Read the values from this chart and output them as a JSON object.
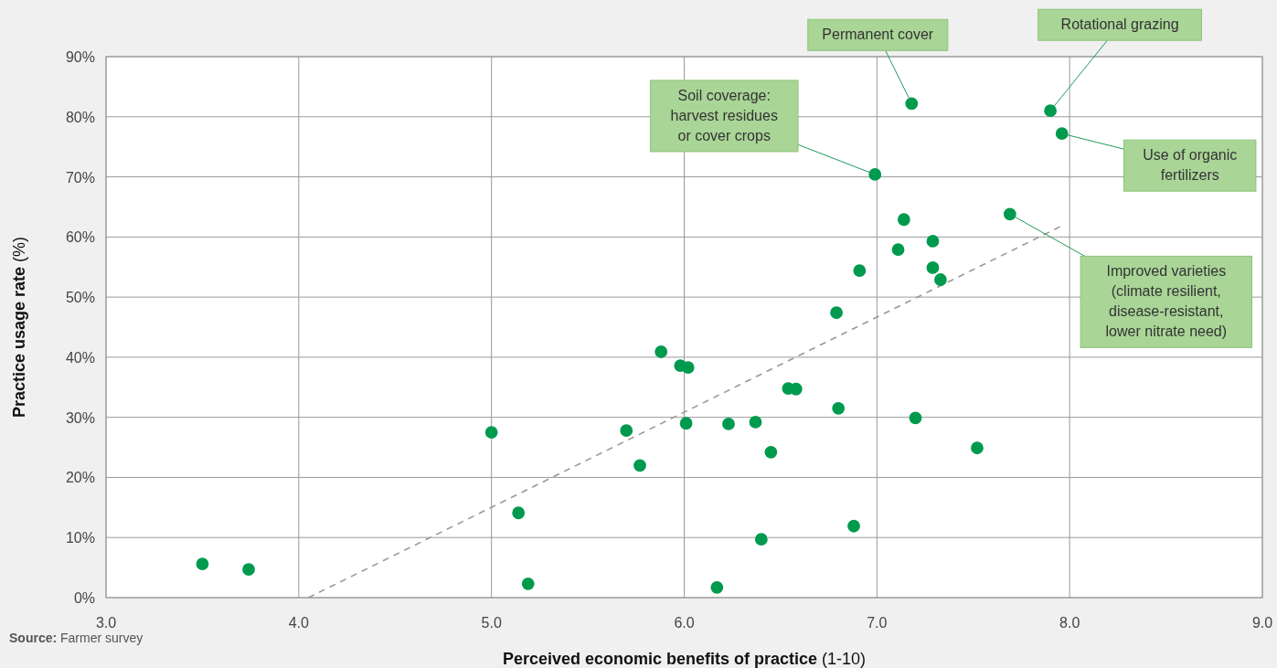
{
  "chart_data": {
    "type": "scatter",
    "xlabel": "Perceived economic benefits of practice (1-10)",
    "ylabel": "Practice usage rate (%)",
    "xlim": [
      3,
      9
    ],
    "xticks": [
      {
        "value": 3,
        "label": "3.0"
      },
      {
        "value": 4,
        "label": "4.0"
      },
      {
        "value": 5,
        "label": "5.0"
      },
      {
        "value": 6,
        "label": "6.0"
      },
      {
        "value": 7,
        "label": "7.0"
      },
      {
        "value": 8,
        "label": "8.0"
      },
      {
        "value": 9,
        "label": "9.0"
      }
    ],
    "ylim": [
      0,
      90
    ],
    "yticks": [
      {
        "value": 0,
        "label": "0%"
      },
      {
        "value": 10,
        "label": "10%"
      },
      {
        "value": 20,
        "label": "20%"
      },
      {
        "value": 30,
        "label": "30%"
      },
      {
        "value": 40,
        "label": "40%"
      },
      {
        "value": 50,
        "label": "50%"
      },
      {
        "value": 60,
        "label": "60%"
      },
      {
        "value": 70,
        "label": "70%"
      },
      {
        "value": 80,
        "label": "80%"
      },
      {
        "value": 90,
        "label": "90%"
      }
    ],
    "grid": true,
    "marker": "circle",
    "series": [
      {
        "color": "#009a4e",
        "x": [
          3.5,
          3.74,
          5.0,
          5.14,
          5.19,
          5.7,
          5.77,
          5.88,
          5.98,
          6.02,
          6.01,
          6.17,
          6.23,
          6.37,
          6.4,
          6.45,
          6.54,
          6.58,
          6.79,
          6.8,
          6.88,
          6.91,
          6.99,
          7.11,
          7.14,
          7.18,
          7.2,
          7.29,
          7.29,
          7.33,
          7.52,
          7.69,
          7.9,
          7.96
        ],
        "values": [
          5.6,
          4.7,
          27.5,
          14.1,
          2.3,
          27.8,
          22.0,
          40.9,
          38.6,
          38.3,
          29.0,
          1.7,
          28.9,
          29.2,
          9.7,
          24.2,
          34.8,
          34.7,
          47.4,
          31.5,
          11.9,
          54.4,
          70.4,
          57.9,
          62.9,
          82.2,
          29.9,
          59.3,
          54.9,
          52.9,
          24.9,
          63.8,
          81.0,
          77.2
        ]
      },
      {
        "type": "line",
        "color": "#999999",
        "line_style": "dashed",
        "marker": "none",
        "x": [
          4.05,
          7.95
        ],
        "values": [
          0,
          61.7
        ]
      }
    ],
    "annotations": [
      {
        "text": "Permanent cover",
        "x": 7.18,
        "y": 82.2
      },
      {
        "text": "Rotational grazing",
        "x": 7.9,
        "y": 81.0
      },
      {
        "text": "Soil coverage:\nharvest residues\nor cover crops",
        "x": 6.99,
        "y": 70.4
      },
      {
        "text": "Use of organic\nfertilizers",
        "x": 7.96,
        "y": 77.2
      },
      {
        "text": "Improved varieties\n(climate resilient,\ndisease-resistant,\nlower nitrate need)",
        "x": 7.69,
        "y": 63.8
      },
      "Source: Farmer survey"
    ]
  }
}
